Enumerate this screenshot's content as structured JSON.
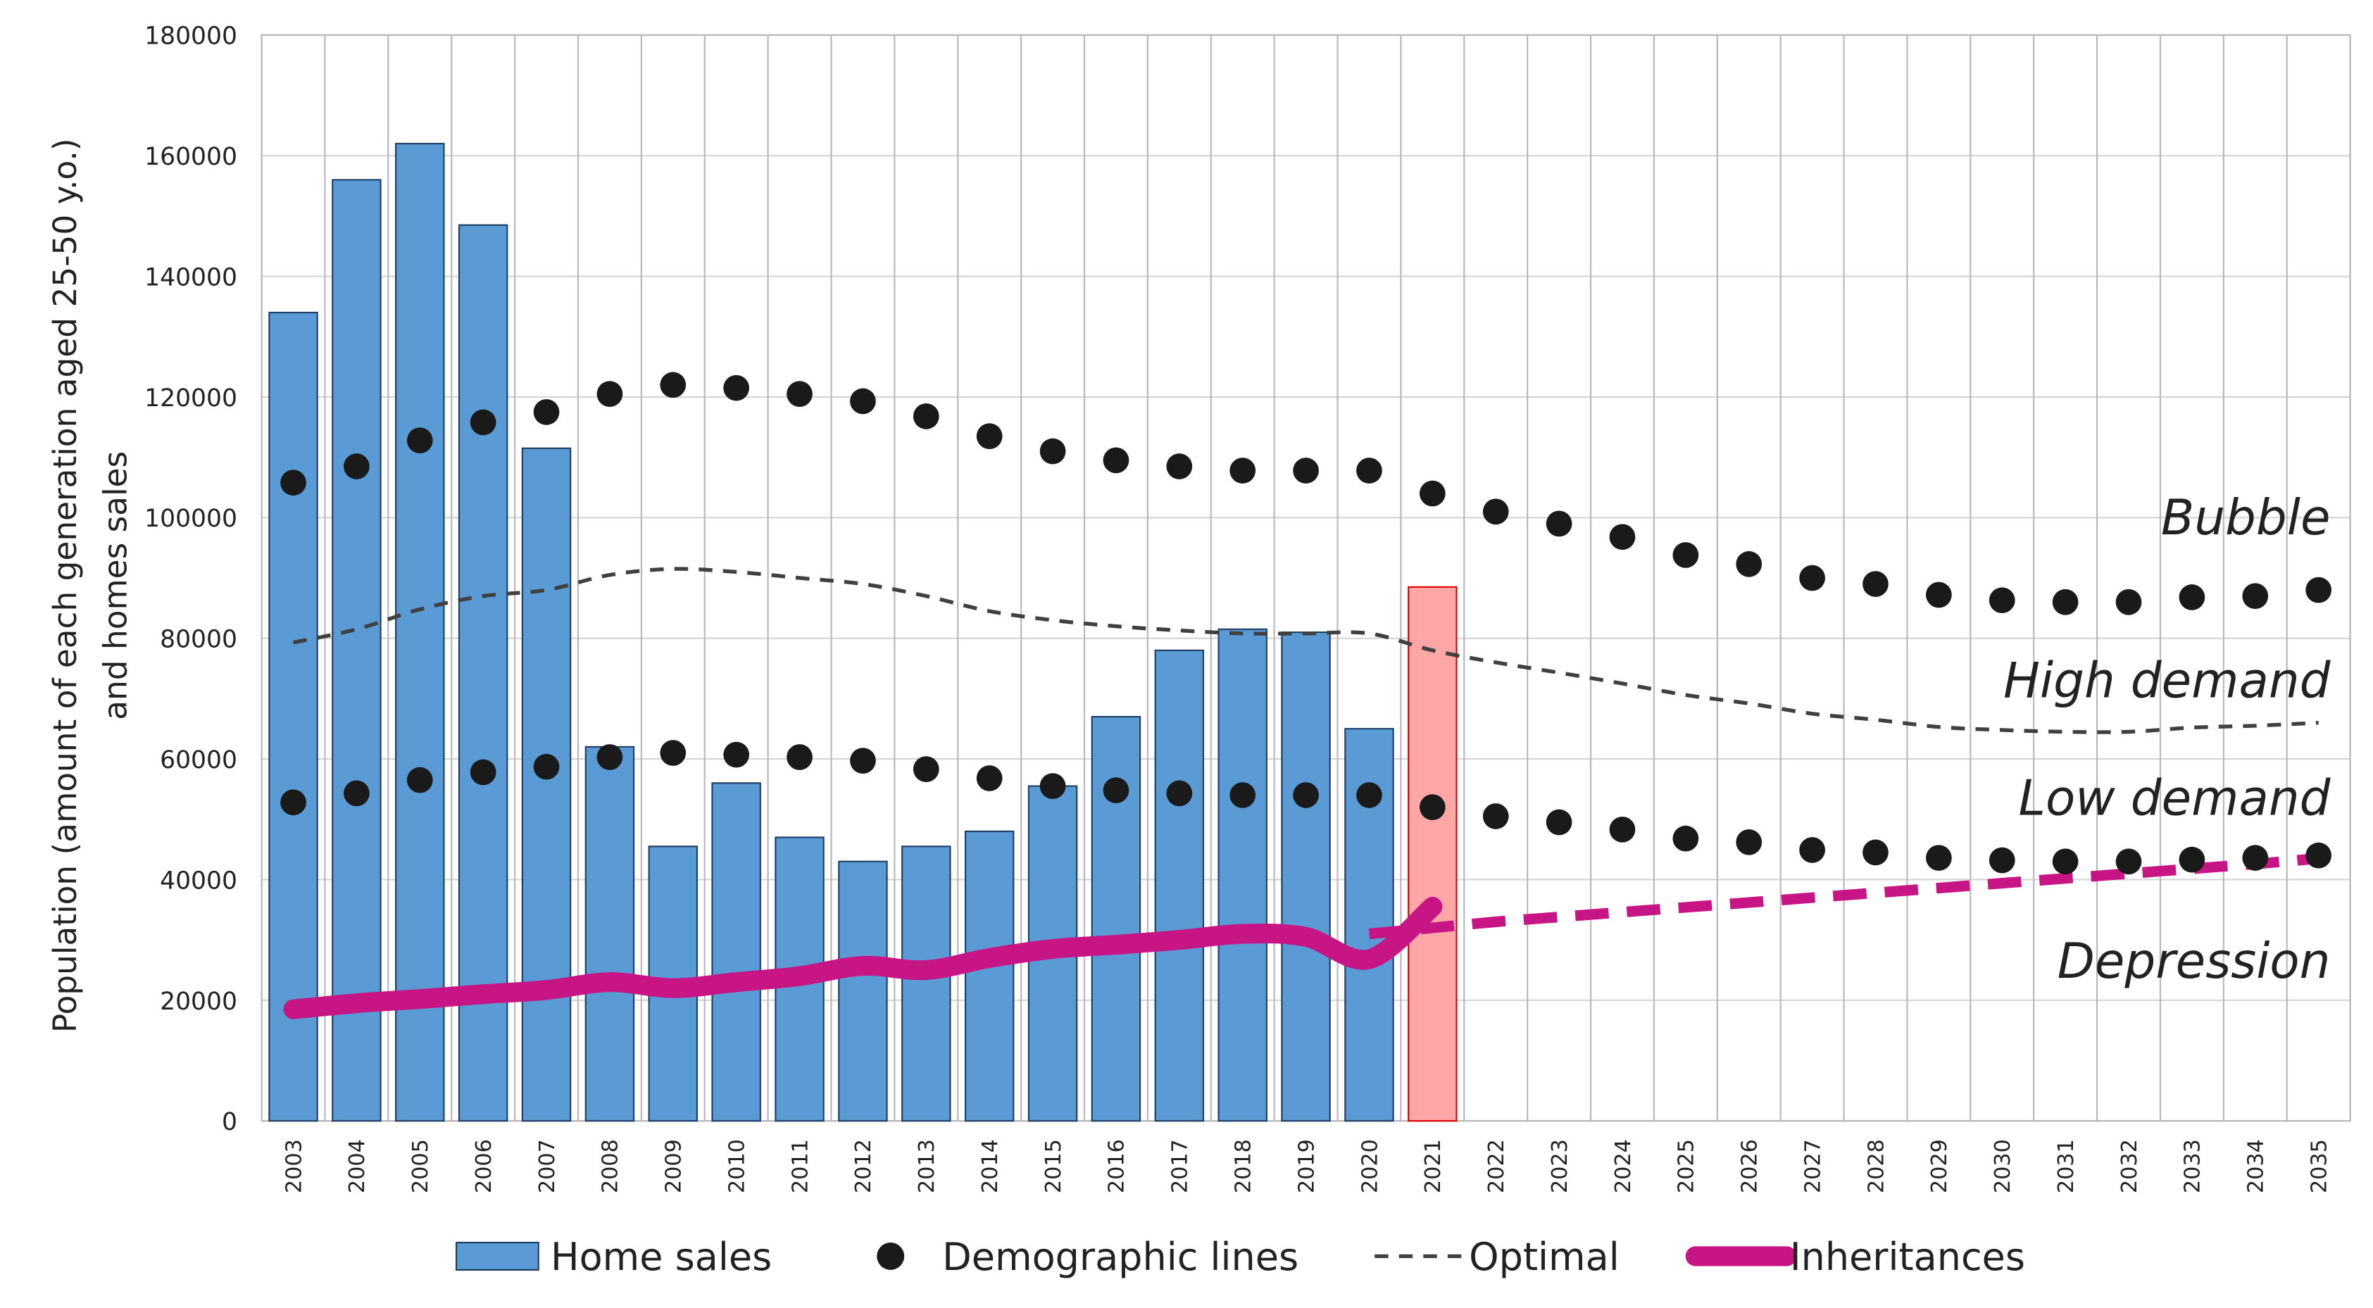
{
  "chart_data": {
    "type": "combo",
    "y_label_lines": [
      "Population (amount of each generation aged 25-50 y.o.)",
      "and homes sales"
    ],
    "categories": [
      "2003",
      "2004",
      "2005",
      "2006",
      "2007",
      "2008",
      "2009",
      "2010",
      "2011",
      "2012",
      "2013",
      "2014",
      "2015",
      "2016",
      "2017",
      "2018",
      "2019",
      "2020",
      "2021",
      "2022",
      "2023",
      "2024",
      "2025",
      "2026",
      "2027",
      "2028",
      "2029",
      "2030",
      "2031",
      "2032",
      "2033",
      "2034",
      "2035"
    ],
    "ylim": [
      0,
      180000
    ],
    "yticks": [
      0,
      20000,
      40000,
      60000,
      80000,
      100000,
      120000,
      140000,
      160000,
      180000
    ],
    "grid": true,
    "legend": "bottom",
    "series": [
      {
        "name": "Home sales",
        "type": "bar",
        "color": "#5b9bd5",
        "edge": "#1f3f66",
        "values": [
          134000,
          156000,
          162000,
          148500,
          111500,
          62000,
          45500,
          56000,
          47000,
          43000,
          45500,
          48000,
          55500,
          67000,
          78000,
          81500,
          81000,
          65000,
          88500,
          null,
          null,
          null,
          null,
          null,
          null,
          null,
          null,
          null,
          null,
          null,
          null,
          null,
          null
        ],
        "colors": [
          "#5b9bd5",
          "#5b9bd5",
          "#5b9bd5",
          "#5b9bd5",
          "#5b9bd5",
          "#5b9bd5",
          "#5b9bd5",
          "#5b9bd5",
          "#5b9bd5",
          "#5b9bd5",
          "#5b9bd5",
          "#5b9bd5",
          "#5b9bd5",
          "#5b9bd5",
          "#5b9bd5",
          "#5b9bd5",
          "#5b9bd5",
          "#5b9bd5",
          "#ffa6a6",
          null,
          null,
          null,
          null,
          null,
          null,
          null,
          null,
          null,
          null,
          null,
          null,
          null,
          null
        ],
        "edges": [
          "#1f3f66",
          "#1f3f66",
          "#1f3f66",
          "#1f3f66",
          "#1f3f66",
          "#1f3f66",
          "#1f3f66",
          "#1f3f66",
          "#1f3f66",
          "#1f3f66",
          "#1f3f66",
          "#1f3f66",
          "#1f3f66",
          "#1f3f66",
          "#1f3f66",
          "#1f3f66",
          "#1f3f66",
          "#1f3f66",
          "#e00000",
          null,
          null,
          null,
          null,
          null,
          null,
          null,
          null,
          null,
          null,
          null,
          null,
          null,
          null
        ]
      },
      {
        "name": "Demographic lines",
        "type": "scatter",
        "color": "#1a1a1a",
        "values": [
          105800,
          108500,
          112800,
          115800,
          117500,
          120500,
          122000,
          121500,
          120500,
          119300,
          116800,
          113500,
          111000,
          109500,
          108500,
          107800,
          107800,
          107800,
          104000,
          101000,
          99000,
          96800,
          93800,
          92300,
          90000,
          89000,
          87200,
          86300,
          86000,
          86000,
          86800,
          87000,
          88000
        ]
      },
      {
        "type": "scatter",
        "color": "#1a1a1a",
        "values": [
          52800,
          54300,
          56500,
          57800,
          58700,
          60300,
          61000,
          60700,
          60300,
          59700,
          58300,
          56800,
          55500,
          54800,
          54300,
          54000,
          54000,
          54000,
          52000,
          50500,
          49500,
          48300,
          46800,
          46200,
          44900,
          44500,
          43600,
          43200,
          43000,
          43000,
          43300,
          43600,
          44000
        ]
      },
      {
        "name": "Optimal",
        "type": "line",
        "color": "#404040",
        "width": 2.5,
        "dash": "9 7",
        "values": [
          79300,
          81500,
          84800,
          87000,
          88000,
          90500,
          91500,
          91000,
          90000,
          89000,
          87000,
          84500,
          83000,
          82000,
          81300,
          80800,
          80800,
          80800,
          78000,
          76000,
          74300,
          72500,
          70600,
          69200,
          67500,
          66500,
          65300,
          64800,
          64500,
          64500,
          65200,
          65500,
          66000
        ]
      },
      {
        "name": "Inheritances",
        "type": "line",
        "color": "#c71585",
        "width": 13,
        "values": [
          18500,
          19500,
          20200,
          21000,
          21700,
          23000,
          22000,
          23000,
          24000,
          25700,
          25000,
          27000,
          28500,
          29200,
          30000,
          31000,
          30500,
          26800,
          35500,
          null,
          null,
          null,
          null,
          null,
          null,
          null,
          null,
          null,
          null,
          null,
          null,
          null,
          null
        ]
      },
      {
        "type": "line",
        "color": "#c71585",
        "width": 7,
        "dash": "22 12",
        "values": [
          null,
          null,
          null,
          null,
          null,
          null,
          null,
          null,
          null,
          null,
          null,
          null,
          null,
          null,
          null,
          null,
          null,
          31000,
          32000,
          33000,
          33800,
          34600,
          35400,
          36200,
          37000,
          37800,
          38600,
          39400,
          40200,
          41000,
          41800,
          42600,
          43500
        ]
      }
    ],
    "annotations": [
      {
        "text": "Bubble",
        "y": 100000
      },
      {
        "text": "High demand",
        "y": 73000
      },
      {
        "text": "Low demand",
        "y": 53500
      },
      {
        "text": "Depression",
        "y": 26500
      }
    ]
  }
}
